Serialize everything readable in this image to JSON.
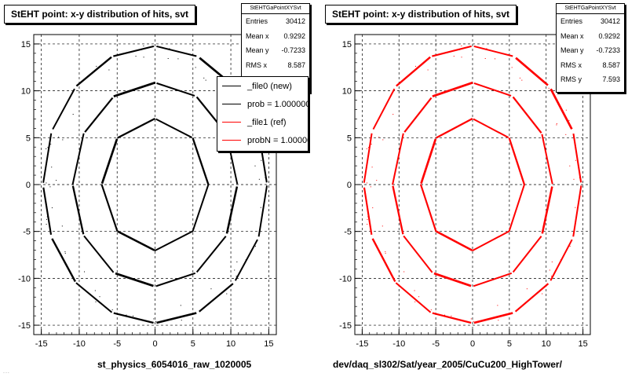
{
  "pads": [
    {
      "title": "StEHT point: x-y distribution of hits, svt",
      "caption": "st_physics_6054016_raw_1020005",
      "stats": {
        "name": "StEHTGaPointXYSvt",
        "rows": [
          {
            "label": "Entries",
            "value": "30412"
          },
          {
            "label": "Mean x",
            "value": "0.9292"
          },
          {
            "label": "Mean y",
            "value": "-0.7233"
          },
          {
            "label": "RMS x",
            "value": "8.587"
          },
          {
            "label": "RMS y",
            "value": "7.593"
          }
        ]
      },
      "legend": [
        {
          "label": "_file0 (new)",
          "color": "#000000"
        },
        {
          "label": "prob = 1.000000",
          "color": "#000000"
        },
        {
          "label": "_file1 (ref)",
          "color": "#ff0000"
        },
        {
          "label": "probN = 1.000000",
          "color": "#ff0000"
        }
      ]
    },
    {
      "title": "StEHT point: x-y distribution of hits, svt",
      "caption": "dev/daq_sl302/Sat/year_2005/CuCu200_HighTower/",
      "stats": {
        "name": "StEHTGaPointXYSvt",
        "rows": [
          {
            "label": "Entries",
            "value": "30412"
          },
          {
            "label": "Mean x",
            "value": "0.9292"
          },
          {
            "label": "Mean y",
            "value": "-0.7233"
          },
          {
            "label": "RMS x",
            "value": "8.587"
          },
          {
            "label": "RMS y",
            "value": "7.593"
          }
        ]
      }
    }
  ],
  "footnote": "...",
  "chart_data": [
    {
      "type": "scatter",
      "title": "StEHT point: x-y distribution of hits, svt",
      "xlabel": "st_physics_6054016_raw_1020005",
      "ylabel": "",
      "xlim": [
        -16,
        16
      ],
      "ylim": [
        -16,
        16
      ],
      "xticks": [
        -15,
        -10,
        -5,
        0,
        5,
        10,
        15
      ],
      "yticks": [
        -15,
        -10,
        -5,
        0,
        5,
        10,
        15
      ],
      "grid": true,
      "marker_color": "#000000",
      "series": [
        {
          "name": "_file0 (new)",
          "layers": [
            {
              "radius": 6.5,
              "ladders": 8,
              "half_length": 3.0
            },
            {
              "radius": 10.5,
              "ladders": 12,
              "half_length": 3.0
            },
            {
              "radius": 14.5,
              "ladders": 16,
              "half_length": 3.0
            }
          ]
        },
        {
          "name": "_file1 (ref)",
          "layers": [
            {
              "radius": 6.5,
              "ladders": 8,
              "half_length": 3.0
            },
            {
              "radius": 10.5,
              "ladders": 12,
              "half_length": 3.0
            },
            {
              "radius": 14.5,
              "ladders": 16,
              "half_length": 3.0
            }
          ]
        }
      ]
    },
    {
      "type": "scatter",
      "title": "StEHT point: x-y distribution of hits, svt",
      "xlabel": "dev/daq_sl302/Sat/year_2005/CuCu200_HighTower/",
      "ylabel": "",
      "xlim": [
        -16,
        16
      ],
      "ylim": [
        -16,
        16
      ],
      "xticks": [
        -15,
        -10,
        -5,
        0,
        5,
        10,
        15
      ],
      "yticks": [
        -15,
        -10,
        -5,
        0,
        5,
        10,
        15
      ],
      "grid": true,
      "marker_color": "#ff0000",
      "series": [
        {
          "name": "_file1 (ref)",
          "layers": [
            {
              "radius": 6.5,
              "ladders": 8,
              "half_length": 3.0
            },
            {
              "radius": 10.5,
              "ladders": 12,
              "half_length": 3.0
            },
            {
              "radius": 14.5,
              "ladders": 16,
              "half_length": 3.0
            }
          ]
        }
      ]
    }
  ]
}
